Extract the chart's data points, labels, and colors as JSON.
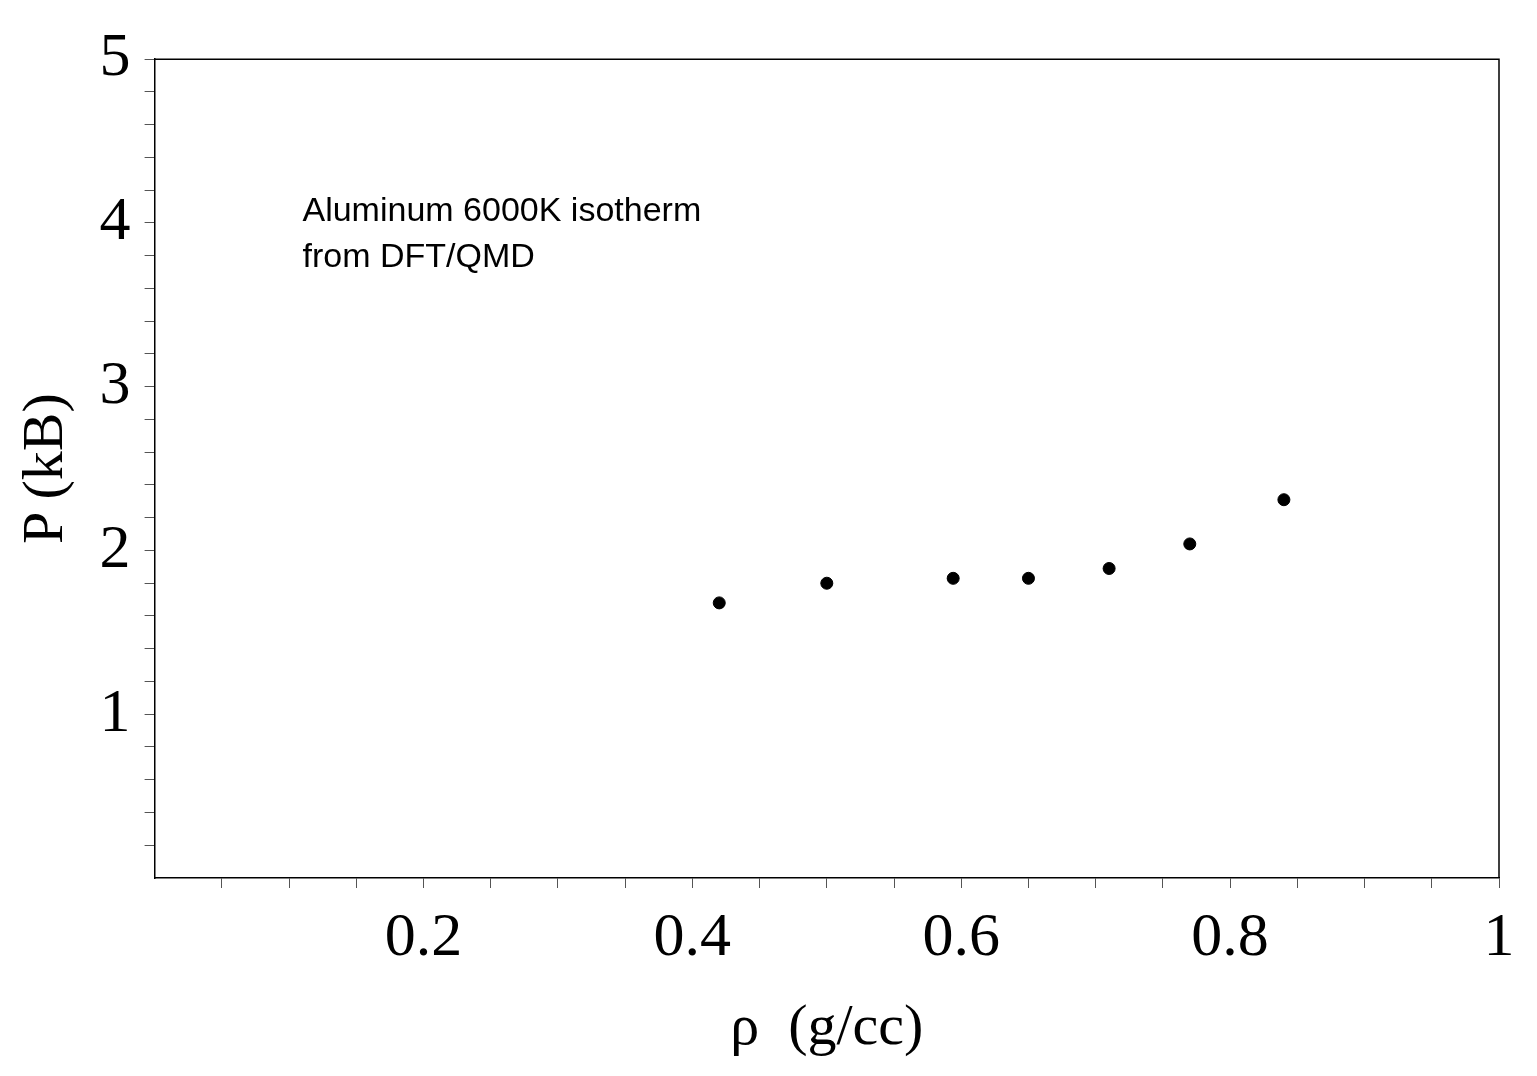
{
  "chart_data": {
    "type": "scatter",
    "xlabel": "ρ  (g/cc)",
    "ylabel": "P (kB)",
    "annotations": [
      "Aluminum 6000K isotherm",
      "from DFT/QMD"
    ],
    "x": [
      0.42,
      0.5,
      0.594,
      0.65,
      0.71,
      0.77,
      0.84
    ],
    "series": [
      {
        "color": "#000000",
        "values": [
          1.68,
          1.8,
          1.83,
          1.83,
          1.89,
          2.04,
          2.31
        ]
      }
    ],
    "xlim": [
      0,
      1
    ],
    "xticks": [
      {
        "value": 0.05,
        "label": null
      },
      {
        "value": 0.1,
        "label": null
      },
      {
        "value": 0.15,
        "label": null
      },
      {
        "value": 0.2,
        "label": "0.2"
      },
      {
        "value": 0.25,
        "label": null
      },
      {
        "value": 0.3,
        "label": null
      },
      {
        "value": 0.35,
        "label": null
      },
      {
        "value": 0.4,
        "label": "0.4"
      },
      {
        "value": 0.45,
        "label": null
      },
      {
        "value": 0.5,
        "label": null
      },
      {
        "value": 0.55,
        "label": null
      },
      {
        "value": 0.6,
        "label": "0.6"
      },
      {
        "value": 0.65,
        "label": null
      },
      {
        "value": 0.7,
        "label": null
      },
      {
        "value": 0.75,
        "label": null
      },
      {
        "value": 0.8,
        "label": "0.8"
      },
      {
        "value": 0.85,
        "label": null
      },
      {
        "value": 0.9,
        "label": null
      },
      {
        "value": 0.95,
        "label": null
      },
      1
    ],
    "ylim": [
      0,
      5
    ],
    "yticks": [
      {
        "value": 0.2,
        "label": null
      },
      {
        "value": 0.4,
        "label": null
      },
      {
        "value": 0.6,
        "label": null
      },
      {
        "value": 0.8,
        "label": null
      },
      1,
      {
        "value": 1.2,
        "label": null
      },
      {
        "value": 1.4,
        "label": null
      },
      {
        "value": 1.6,
        "label": null
      },
      {
        "value": 1.8,
        "label": null
      },
      2,
      {
        "value": 2.2,
        "label": null
      },
      {
        "value": 2.4,
        "label": null
      },
      {
        "value": 2.6,
        "label": null
      },
      {
        "value": 2.8,
        "label": null
      },
      3,
      {
        "value": 3.2,
        "label": null
      },
      {
        "value": 3.4,
        "label": null
      },
      {
        "value": 3.6,
        "label": null
      },
      {
        "value": 3.8,
        "label": null
      },
      4,
      {
        "value": 4.2,
        "label": null
      },
      {
        "value": 4.4,
        "label": null
      },
      {
        "value": 4.6,
        "label": null
      },
      {
        "value": 4.8,
        "label": null
      },
      5
    ],
    "grid": false,
    "legend": false,
    "marker": "circle"
  }
}
